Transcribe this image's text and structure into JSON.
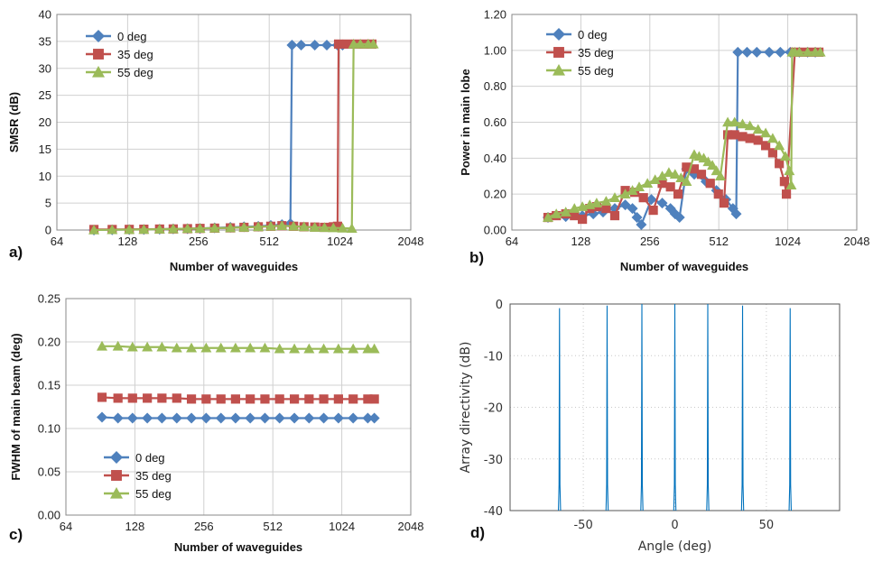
{
  "chart_data": [
    {
      "type": "line",
      "panel_label": "a)",
      "xlabel": "Number of waveguides",
      "ylabel": "SMSR (dB)",
      "xscale": "log2",
      "xticks": [
        64,
        128,
        256,
        512,
        1024,
        2048
      ],
      "xtick_labels": [
        "64",
        "128",
        "256",
        "512",
        "1024",
        "2048"
      ],
      "ylim": [
        0,
        40
      ],
      "yticks": [
        0,
        5,
        10,
        15,
        20,
        25,
        30,
        35,
        40
      ],
      "ytick_labels": [
        "0",
        "5",
        "10",
        "15",
        "20",
        "25",
        "30",
        "35",
        "40"
      ],
      "grid": true,
      "legend_position": "top-left",
      "series": [
        {
          "name": "0 deg",
          "color": "#4F81BD",
          "marker": "diamond",
          "x": [
            92,
            110,
            130,
            150,
            175,
            200,
            230,
            260,
            300,
            350,
            400,
            460,
            520,
            580,
            630,
            640,
            700,
            800,
            900,
            1000,
            1050
          ],
          "y": [
            0,
            0.05,
            0.08,
            0.1,
            0.15,
            0.2,
            0.25,
            0.3,
            0.4,
            0.5,
            0.6,
            0.7,
            0.85,
            1.0,
            1.2,
            34.3,
            34.3,
            34.3,
            34.3,
            34.3,
            34.3
          ]
        },
        {
          "name": "35 deg",
          "color": "#C0504D",
          "marker": "square",
          "x": [
            92,
            110,
            130,
            150,
            175,
            200,
            230,
            260,
            300,
            350,
            400,
            460,
            520,
            580,
            650,
            720,
            800,
            880,
            960,
            1000,
            1010,
            1100,
            1200,
            1300,
            1400
          ],
          "y": [
            0.1,
            0.1,
            0.12,
            0.15,
            0.18,
            0.2,
            0.25,
            0.3,
            0.35,
            0.4,
            0.5,
            0.6,
            0.7,
            0.8,
            0.7,
            0.6,
            0.55,
            0.5,
            0.6,
            0.7,
            34.5,
            34.5,
            34.5,
            34.5,
            34.5
          ]
        },
        {
          "name": "55 deg",
          "color": "#9BBB59",
          "marker": "triangle",
          "x": [
            92,
            110,
            130,
            150,
            175,
            200,
            230,
            260,
            300,
            350,
            400,
            460,
            520,
            580,
            650,
            720,
            800,
            880,
            960,
            1050,
            1150,
            1170,
            1250,
            1350,
            1420
          ],
          "y": [
            0,
            0.05,
            0.08,
            0.1,
            0.15,
            0.2,
            0.25,
            0.3,
            0.35,
            0.4,
            0.5,
            0.6,
            0.7,
            0.8,
            0.7,
            0.6,
            0.5,
            0.45,
            0.4,
            0.35,
            0.3,
            34.5,
            34.5,
            34.5,
            34.5
          ]
        }
      ]
    },
    {
      "type": "line",
      "panel_label": "b)",
      "xlabel": "Number of waveguides",
      "ylabel": "Power in main lobe",
      "xscale": "log2",
      "xticks": [
        64,
        128,
        256,
        512,
        1024,
        2048
      ],
      "xtick_labels": [
        "64",
        "128",
        "256",
        "512",
        "1024",
        "2048"
      ],
      "ylim": [
        0,
        1.2
      ],
      "yticks": [
        0,
        0.2,
        0.4,
        0.6,
        0.8,
        1.0,
        1.2
      ],
      "ytick_labels": [
        "0.00",
        "0.20",
        "0.40",
        "0.60",
        "0.80",
        "1.00",
        "1.20"
      ],
      "grid": true,
      "legend_position": "top-left",
      "series": [
        {
          "name": "0 deg",
          "color": "#4F81BD",
          "marker": "diamond",
          "x": [
            92,
            110,
            130,
            145,
            160,
            180,
            200,
            215,
            225,
            235,
            260,
            290,
            315,
            330,
            345,
            370,
            400,
            450,
            500,
            550,
            590,
            610,
            620,
            680,
            750,
            850,
            950,
            1050,
            1150,
            1250,
            1350
          ],
          "y": [
            0.07,
            0.075,
            0.08,
            0.09,
            0.1,
            0.12,
            0.14,
            0.12,
            0.07,
            0.03,
            0.17,
            0.15,
            0.12,
            0.09,
            0.07,
            0.34,
            0.31,
            0.27,
            0.22,
            0.17,
            0.12,
            0.09,
            0.99,
            0.99,
            0.99,
            0.99,
            0.99,
            0.99,
            0.99,
            0.99,
            0.99
          ]
        },
        {
          "name": "35 deg",
          "color": "#C0504D",
          "marker": "square",
          "x": [
            92,
            100,
            110,
            120,
            130,
            140,
            150,
            165,
            180,
            200,
            220,
            240,
            265,
            290,
            315,
            340,
            370,
            400,
            430,
            470,
            510,
            540,
            560,
            600,
            650,
            700,
            760,
            820,
            880,
            940,
            990,
            1010,
            1100,
            1200,
            1300,
            1400
          ],
          "y": [
            0.07,
            0.08,
            0.09,
            0.08,
            0.06,
            0.12,
            0.13,
            0.12,
            0.08,
            0.22,
            0.21,
            0.18,
            0.11,
            0.26,
            0.24,
            0.2,
            0.35,
            0.34,
            0.31,
            0.26,
            0.2,
            0.15,
            0.53,
            0.53,
            0.52,
            0.51,
            0.5,
            0.47,
            0.43,
            0.37,
            0.27,
            0.2,
            0.99,
            0.99,
            0.99,
            0.99
          ]
        },
        {
          "name": "55 deg",
          "color": "#9BBB59",
          "marker": "triangle",
          "x": [
            92,
            100,
            110,
            120,
            130,
            140,
            150,
            165,
            180,
            200,
            215,
            230,
            250,
            270,
            290,
            310,
            330,
            350,
            370,
            400,
            420,
            440,
            460,
            480,
            500,
            520,
            560,
            600,
            650,
            700,
            760,
            820,
            880,
            940,
            1000,
            1040,
            1060,
            1070,
            1100,
            1150,
            1250,
            1350,
            1420
          ],
          "y": [
            0.07,
            0.09,
            0.1,
            0.12,
            0.13,
            0.14,
            0.15,
            0.16,
            0.18,
            0.2,
            0.22,
            0.24,
            0.26,
            0.28,
            0.3,
            0.32,
            0.31,
            0.29,
            0.27,
            0.42,
            0.41,
            0.4,
            0.38,
            0.36,
            0.33,
            0.3,
            0.6,
            0.6,
            0.59,
            0.58,
            0.56,
            0.54,
            0.51,
            0.47,
            0.41,
            0.33,
            0.25,
            0.99,
            0.99,
            0.99,
            0.99,
            0.99,
            0.99
          ]
        }
      ]
    },
    {
      "type": "line",
      "panel_label": "c)",
      "xlabel": "Number of waveguides",
      "ylabel": "FWHM of main beam (deg)",
      "xscale": "log2",
      "xticks": [
        64,
        128,
        256,
        512,
        1024,
        2048
      ],
      "xtick_labels": [
        "64",
        "128",
        "256",
        "512",
        "1024",
        "2048"
      ],
      "ylim": [
        0,
        0.25
      ],
      "yticks": [
        0,
        0.05,
        0.1,
        0.15,
        0.2,
        0.25
      ],
      "ytick_labels": [
        "0.00",
        "0.05",
        "0.10",
        "0.15",
        "0.20",
        "0.25"
      ],
      "grid": true,
      "legend_position": "bottom-left",
      "series": [
        {
          "name": "0 deg",
          "color": "#4F81BD",
          "marker": "diamond",
          "x": [
            92,
            108,
            125,
            145,
            168,
            195,
            226,
            262,
            304,
            352,
            408,
            473,
            548,
            636,
            737,
            854,
            990,
            1148,
            1330,
            1420
          ],
          "y": [
            0.113,
            0.112,
            0.112,
            0.112,
            0.112,
            0.112,
            0.112,
            0.112,
            0.112,
            0.112,
            0.112,
            0.112,
            0.112,
            0.112,
            0.112,
            0.112,
            0.112,
            0.112,
            0.112,
            0.112
          ]
        },
        {
          "name": "35 deg",
          "color": "#C0504D",
          "marker": "square",
          "x": [
            92,
            108,
            125,
            145,
            168,
            195,
            226,
            262,
            304,
            352,
            408,
            473,
            548,
            636,
            737,
            854,
            990,
            1148,
            1330,
            1420
          ],
          "y": [
            0.136,
            0.135,
            0.135,
            0.135,
            0.135,
            0.135,
            0.134,
            0.134,
            0.134,
            0.134,
            0.134,
            0.134,
            0.134,
            0.134,
            0.134,
            0.134,
            0.134,
            0.134,
            0.134,
            0.134
          ]
        },
        {
          "name": "55 deg",
          "color": "#9BBB59",
          "marker": "triangle",
          "x": [
            92,
            108,
            125,
            145,
            168,
            195,
            226,
            262,
            304,
            352,
            408,
            473,
            548,
            636,
            737,
            854,
            990,
            1148,
            1330,
            1420
          ],
          "y": [
            0.195,
            0.195,
            0.194,
            0.194,
            0.194,
            0.193,
            0.193,
            0.193,
            0.193,
            0.193,
            0.193,
            0.193,
            0.192,
            0.192,
            0.192,
            0.192,
            0.192,
            0.192,
            0.192,
            0.192
          ]
        }
      ]
    },
    {
      "type": "line",
      "panel_label": "d)",
      "xlabel": "Angle (deg)",
      "ylabel": "Array directivity (dB)",
      "xlim": [
        -90,
        90
      ],
      "xticks": [
        -50,
        0,
        50
      ],
      "xtick_labels": [
        "-50",
        "0",
        "50"
      ],
      "ylim": [
        -40,
        0
      ],
      "yticks": [
        -40,
        -30,
        -20,
        -10,
        0
      ],
      "ytick_labels": [
        "-40",
        "-30",
        "-20",
        "-10",
        "0"
      ],
      "grid": true,
      "peaks_deg": [
        -63,
        -37,
        -18,
        0,
        18,
        37,
        63
      ],
      "peak_levels_db": [
        -0.8,
        -0.3,
        0,
        0,
        0,
        -0.3,
        -0.8
      ],
      "side_lobe_level_db": -35,
      "floor_db": -40,
      "color": "#0072BD"
    }
  ]
}
